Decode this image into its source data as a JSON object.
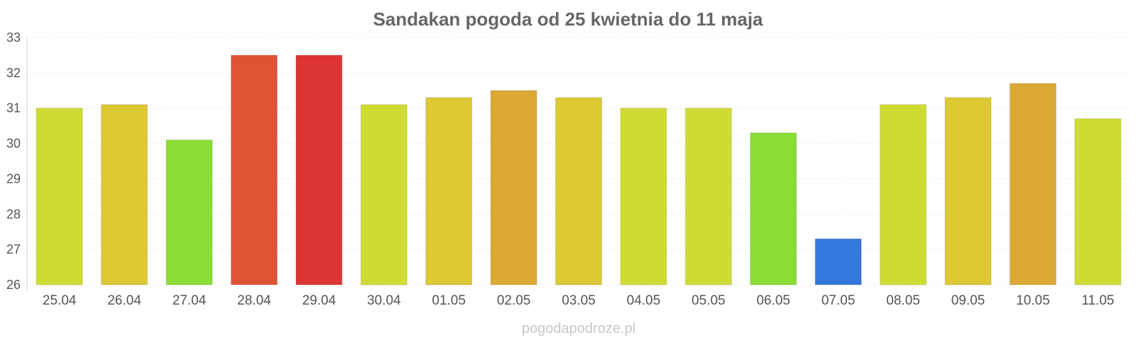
{
  "chart_data": {
    "type": "bar",
    "title": "Sandakan pogoda od 25 kwietnia do 11 maja",
    "xlabel": "",
    "ylabel": "",
    "ylim": [
      26,
      33
    ],
    "yticks": [
      26,
      27,
      28,
      29,
      30,
      31,
      32,
      33
    ],
    "grid": true,
    "categories": [
      "25.04",
      "26.04",
      "27.04",
      "28.04",
      "29.04",
      "30.04",
      "01.05",
      "02.05",
      "03.05",
      "04.05",
      "05.05",
      "06.05",
      "07.05",
      "08.05",
      "09.05",
      "10.05",
      "11.05"
    ],
    "values": [
      31.0,
      31.1,
      30.1,
      32.5,
      32.5,
      31.1,
      31.3,
      31.5,
      31.3,
      31.0,
      31.0,
      30.3,
      27.3,
      31.1,
      31.3,
      31.7,
      30.7
    ],
    "colors": [
      "#cfdc33",
      "#dcc934",
      "#8add35",
      "#dd5433",
      "#dd3434",
      "#cfdc33",
      "#dcc934",
      "#dca934",
      "#dcc934",
      "#cfdc33",
      "#cfdc33",
      "#8add35",
      "#3477dd",
      "#cfdc33",
      "#dcc934",
      "#dca934",
      "#cfdc33"
    ]
  },
  "watermark": "pogodapodroze.pl"
}
